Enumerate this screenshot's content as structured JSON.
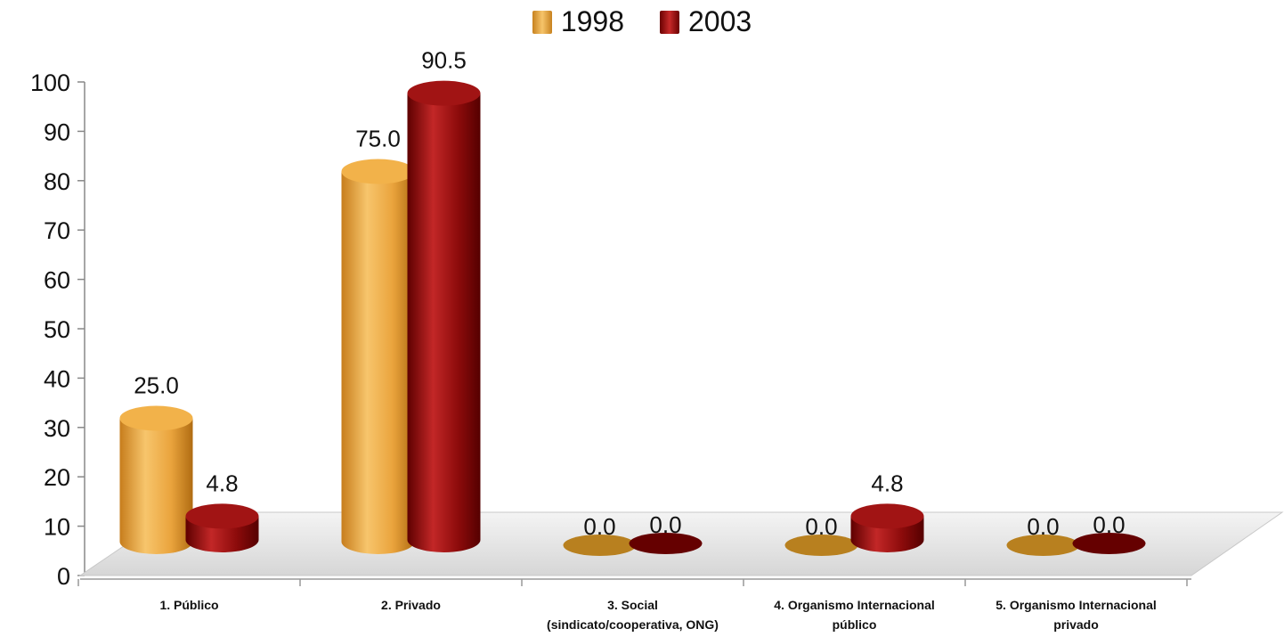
{
  "chart_data": {
    "type": "bar",
    "title": "",
    "xlabel": "",
    "ylabel": "",
    "ylim": [
      0,
      100
    ],
    "yticks": [
      0,
      10,
      20,
      30,
      40,
      50,
      60,
      70,
      80,
      90,
      100
    ],
    "categories": [
      [
        "1. Público"
      ],
      [
        "2. Privado"
      ],
      [
        "3. Social",
        "(sindicato/cooperativa, ONG)"
      ],
      [
        "4. Organismo Internacional",
        "público"
      ],
      [
        "5. Organismo Internacional",
        "privado"
      ]
    ],
    "series": [
      {
        "name": "1998",
        "values": [
          25.0,
          75.0,
          0.0,
          0.0,
          0.0
        ],
        "labels": [
          "25.0",
          "75.0",
          "0.0",
          "0.0",
          "0.0"
        ],
        "color": "#e9a23b"
      },
      {
        "name": "2003",
        "values": [
          4.8,
          90.5,
          0.0,
          4.8,
          0.0
        ],
        "labels": [
          "4.8",
          "90.5",
          "0.0",
          "4.8",
          "0.0"
        ],
        "color": "#8b0a0a"
      }
    ],
    "legend_position": "top-center",
    "grid": false
  }
}
